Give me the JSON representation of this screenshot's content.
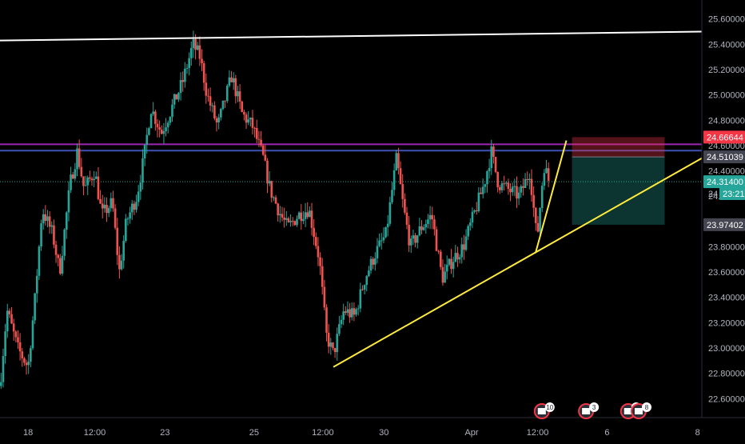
{
  "chart_data": {
    "type": "candlestick",
    "symbol_note": "",
    "price_axis": {
      "ticks": [
        "25.60000",
        "25.40000",
        "25.20000",
        "25.00000",
        "24.80000",
        "24.60000",
        "24.40000",
        "24.20000",
        "23.80000",
        "23.60000",
        "23.40000",
        "23.20000",
        "23.00000",
        "22.80000",
        "22.60000"
      ],
      "tick_values": [
        25.6,
        25.4,
        25.2,
        25.0,
        24.8,
        24.6,
        24.4,
        24.2,
        23.8,
        23.6,
        23.4,
        23.2,
        23.0,
        22.8,
        22.6
      ],
      "range": [
        22.45,
        25.75
      ]
    },
    "time_axis": {
      "labels": [
        "18",
        "12:00",
        "23",
        "25",
        "12:00",
        "30",
        "Apr",
        "12:00",
        "6",
        "8"
      ]
    },
    "price_labels": [
      {
        "text": "24.66644",
        "value": 24.66644,
        "color": "#f23645"
      },
      {
        "text": "24.51039",
        "value": 24.51039,
        "color": "#434651"
      },
      {
        "text": "24.31400",
        "value": 24.314,
        "color": "#26a69a"
      },
      {
        "text": "23:21",
        "value": 24.22,
        "color": "#26a69a"
      },
      {
        "text": "23.97402",
        "value": 23.97402,
        "color": "#434651"
      }
    ],
    "partial_tick_label": {
      "text": "24",
      "value": 24.22
    },
    "horizontal_levels": [
      {
        "value": 24.61,
        "color": "#9c27b0"
      },
      {
        "value": 24.56,
        "color": "#3f51b5"
      }
    ],
    "current_price": 24.314,
    "resistance_line": {
      "color": "#ffffff",
      "from": {
        "x": 0,
        "y": 25.43
      },
      "to": {
        "x": 1,
        "y": 25.5
      }
    },
    "trend_lines": [
      {
        "color": "#ffeb3b",
        "from": {
          "x": 0.475,
          "y": 22.85
        },
        "to": {
          "x": 1,
          "y": 24.5
        }
      },
      {
        "color": "#ffeb3b",
        "from": {
          "x": 0.763,
          "y": 23.75
        },
        "to": {
          "x": 0.807,
          "y": 24.64
        }
      }
    ],
    "position_box": {
      "entry": 24.51039,
      "stop": 24.66644,
      "target": 23.97402,
      "x_from": 0.815,
      "x_to": 0.947,
      "stop_color": "#f23645",
      "target_color": "#26a69a"
    },
    "path_points": [
      [
        0,
        22.7
      ],
      [
        0.01,
        23.3
      ],
      [
        0.025,
        23.0
      ],
      [
        0.04,
        22.85
      ],
      [
        0.05,
        23.4
      ],
      [
        0.06,
        24.1
      ],
      [
        0.075,
        23.9
      ],
      [
        0.085,
        23.6
      ],
      [
        0.1,
        24.3
      ],
      [
        0.11,
        24.55
      ],
      [
        0.12,
        24.25
      ],
      [
        0.135,
        24.4
      ],
      [
        0.145,
        24.05
      ],
      [
        0.16,
        24.15
      ],
      [
        0.17,
        23.6
      ],
      [
        0.18,
        24.0
      ],
      [
        0.195,
        24.2
      ],
      [
        0.205,
        24.5
      ],
      [
        0.215,
        24.9
      ],
      [
        0.23,
        24.7
      ],
      [
        0.245,
        24.9
      ],
      [
        0.26,
        25.1
      ],
      [
        0.275,
        25.4
      ],
      [
        0.285,
        25.3
      ],
      [
        0.295,
        25.0
      ],
      [
        0.31,
        24.75
      ],
      [
        0.33,
        25.15
      ],
      [
        0.345,
        24.85
      ],
      [
        0.36,
        24.75
      ],
      [
        0.375,
        24.5
      ],
      [
        0.385,
        24.25
      ],
      [
        0.4,
        24.05
      ],
      [
        0.41,
        23.95
      ],
      [
        0.425,
        24.05
      ],
      [
        0.44,
        24.1
      ],
      [
        0.455,
        23.7
      ],
      [
        0.465,
        23.1
      ],
      [
        0.475,
        22.95
      ],
      [
        0.49,
        23.3
      ],
      [
        0.505,
        23.25
      ],
      [
        0.52,
        23.55
      ],
      [
        0.535,
        23.75
      ],
      [
        0.55,
        23.9
      ],
      [
        0.565,
        24.5
      ],
      [
        0.575,
        24.1
      ],
      [
        0.585,
        23.8
      ],
      [
        0.6,
        23.95
      ],
      [
        0.615,
        24.05
      ],
      [
        0.63,
        23.55
      ],
      [
        0.645,
        23.7
      ],
      [
        0.66,
        23.8
      ],
      [
        0.675,
        24.05
      ],
      [
        0.69,
        24.3
      ],
      [
        0.7,
        24.55
      ],
      [
        0.71,
        24.3
      ],
      [
        0.725,
        24.25
      ],
      [
        0.74,
        24.2
      ],
      [
        0.755,
        24.4
      ],
      [
        0.765,
        23.85
      ],
      [
        0.775,
        24.45
      ],
      [
        0.783,
        24.3
      ]
    ],
    "event_badges": [
      {
        "text": "10",
        "x": 0.772
      },
      {
        "text": "3",
        "x": 0.835
      },
      {
        "text": "2",
        "x": 0.895
      },
      {
        "text": "8",
        "x": 0.91
      }
    ],
    "colors": {
      "up": "#26a69a",
      "down": "#ef5350",
      "grid": "#1e222d",
      "axis_text": "#b2b5be",
      "background": "#000000"
    }
  }
}
